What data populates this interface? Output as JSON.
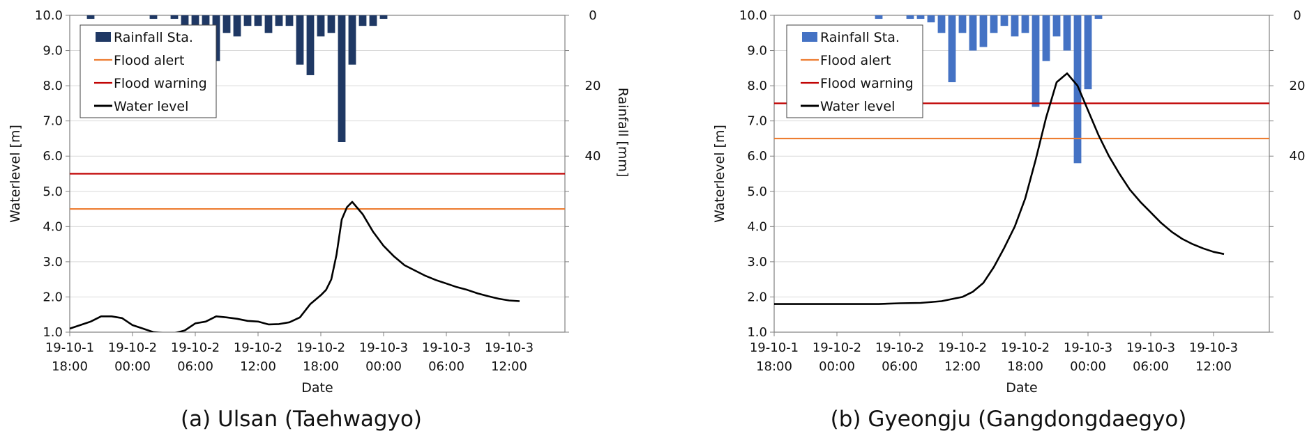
{
  "chart_data": [
    {
      "type": "line",
      "caption": "(a) Ulsan (Taehwagyo)",
      "ylabel": "Waterlevel [m]",
      "y2label": "Rainfall [mm]",
      "xlabel": "Date",
      "ylim": [
        1.0,
        10.0
      ],
      "yticks": [
        "1.0",
        "2.0",
        "3.0",
        "4.0",
        "5.0",
        "6.0",
        "7.0",
        "8.0",
        "9.0",
        "10.0"
      ],
      "y2lim": [
        0,
        90
      ],
      "y2ticks": [
        "0",
        "20",
        "40"
      ],
      "xlim_hours": [
        0,
        32
      ],
      "xticks": [
        {
          "top": "19-10-1",
          "bottom": "18:00"
        },
        {
          "top": "19-10-2",
          "bottom": "00:00"
        },
        {
          "top": "19-10-2",
          "bottom": "06:00"
        },
        {
          "top": "19-10-2",
          "bottom": "12:00"
        },
        {
          "top": "19-10-2",
          "bottom": "18:00"
        },
        {
          "top": "19-10-3",
          "bottom": "00:00"
        },
        {
          "top": "19-10-3",
          "bottom": "06:00"
        },
        {
          "top": "19-10-3",
          "bottom": "12:00"
        }
      ],
      "legend": [
        "Rainfall Sta.",
        "Flood alert",
        "Flood warning",
        "Water level"
      ],
      "legend_position": "top-left",
      "colors": {
        "rainfall": "#1f3864",
        "flood_alert": "#ed7d31",
        "flood_warning": "#c00000",
        "water_level": "#000000"
      },
      "flood_alert": 4.5,
      "flood_warning": 5.5,
      "rainfall": {
        "x": [
          2,
          8,
          10,
          11,
          12,
          13,
          14,
          15,
          16,
          17,
          18,
          19,
          20,
          21,
          22,
          23,
          24,
          25,
          26,
          27,
          28,
          29,
          30
        ],
        "values": [
          1,
          1,
          1,
          5,
          9,
          11,
          13,
          5,
          6,
          3,
          3,
          5,
          3,
          3,
          14,
          17,
          6,
          5,
          36,
          14,
          3,
          3,
          1
        ]
      },
      "water_level": {
        "x": [
          0,
          1,
          2,
          3,
          4,
          5,
          6,
          7,
          8,
          9,
          10,
          11,
          12,
          13,
          14,
          15,
          16,
          17,
          18,
          19,
          20,
          21,
          22,
          23,
          24,
          24.5,
          25,
          25.5,
          26,
          26.5,
          27,
          28,
          29,
          30,
          31,
          32,
          33,
          34,
          35,
          36,
          37,
          38,
          39,
          40,
          41,
          42,
          43
        ],
        "y": [
          1.1,
          1.2,
          1.3,
          1.45,
          1.45,
          1.4,
          1.2,
          1.1,
          1.0,
          0.97,
          0.97,
          1.05,
          1.25,
          1.3,
          1.45,
          1.42,
          1.38,
          1.32,
          1.3,
          1.22,
          1.23,
          1.28,
          1.42,
          1.8,
          2.05,
          2.2,
          2.5,
          3.2,
          4.2,
          4.55,
          4.7,
          4.35,
          3.85,
          3.45,
          3.15,
          2.9,
          2.75,
          2.6,
          2.48,
          2.38,
          2.28,
          2.2,
          2.1,
          2.02,
          1.95,
          1.9,
          1.88
        ]
      }
    },
    {
      "type": "line",
      "caption": "(b) Gyeongju (Gangdongdaegyo)",
      "ylabel": "Waterlevel [m]",
      "y2label": "Rainfall [mm]",
      "xlabel": "Date",
      "ylim": [
        1.0,
        10.0
      ],
      "yticks": [
        "1.0",
        "2.0",
        "3.0",
        "4.0",
        "5.0",
        "6.0",
        "7.0",
        "8.0",
        "9.0",
        "10.0"
      ],
      "y2lim": [
        0,
        90
      ],
      "y2ticks": [
        "0",
        "20",
        "40"
      ],
      "xlim_hours": [
        0,
        32
      ],
      "xticks": [
        {
          "top": "19-10-1",
          "bottom": "18:00"
        },
        {
          "top": "19-10-2",
          "bottom": "00:00"
        },
        {
          "top": "19-10-2",
          "bottom": "06:00"
        },
        {
          "top": "19-10-2",
          "bottom": "12:00"
        },
        {
          "top": "19-10-2",
          "bottom": "18:00"
        },
        {
          "top": "19-10-3",
          "bottom": "00:00"
        },
        {
          "top": "19-10-3",
          "bottom": "06:00"
        },
        {
          "top": "19-10-3",
          "bottom": "12:00"
        }
      ],
      "legend": [
        "Rainfall Sta.",
        "Flood alert",
        "Flood warning",
        "Water level"
      ],
      "legend_position": "top-left",
      "colors": {
        "rainfall": "#4472c4",
        "flood_alert": "#ed7d31",
        "flood_warning": "#c00000",
        "water_level": "#000000"
      },
      "flood_alert": 6.5,
      "flood_warning": 7.5,
      "rainfall": {
        "x": [
          10,
          13,
          14,
          15,
          16,
          17,
          18,
          19,
          20,
          21,
          22,
          23,
          24,
          25,
          26,
          27,
          28,
          29,
          30,
          31
        ],
        "values": [
          1,
          1,
          1,
          2,
          5,
          19,
          5,
          10,
          9,
          5,
          3,
          6,
          5,
          26,
          13,
          6,
          10,
          42,
          21,
          1
        ]
      },
      "water_level": {
        "x": [
          0,
          5,
          10,
          12,
          14,
          16,
          18,
          19,
          20,
          21,
          22,
          23,
          24,
          25,
          26,
          27,
          28,
          29,
          30,
          31,
          32,
          33,
          34,
          35,
          36,
          37,
          38,
          39,
          40,
          41,
          42,
          43
        ],
        "y": [
          1.8,
          1.8,
          1.8,
          1.82,
          1.83,
          1.88,
          2.0,
          2.15,
          2.4,
          2.85,
          3.4,
          4.0,
          4.8,
          5.9,
          7.1,
          8.1,
          8.35,
          8.0,
          7.3,
          6.6,
          6.0,
          5.5,
          5.05,
          4.7,
          4.4,
          4.1,
          3.85,
          3.65,
          3.5,
          3.38,
          3.28,
          3.22
        ]
      }
    }
  ]
}
